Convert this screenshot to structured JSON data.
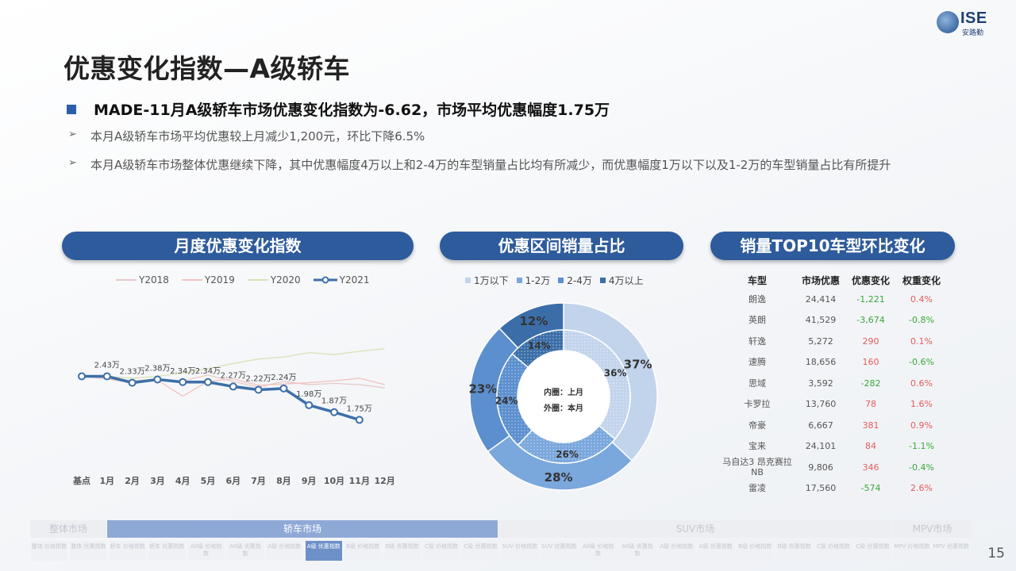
{
  "logo": {
    "text": "ISE",
    "sub": "安路勤"
  },
  "title": "优惠变化指数—A级轿车",
  "headline": "MADE-11月A级轿车市场优惠变化指数为-6.62，市场平均优惠幅度1.75万",
  "bullets": [
    "本月A级轿车市场平均优惠较上月减少1,200元，环比下降6.5%",
    "本月A级轿车市场整体优惠继续下降，其中优惠幅度4万以上和2-4万的车型销量占比均有所减少，而优惠幅度1万以下以及1-2万的车型销量占比有所提升"
  ],
  "sections": [
    "月度优惠变化指数",
    "优惠区间销量占比",
    "销量TOP10车型环比变化"
  ],
  "colors": {
    "accent": "#2e5b9b",
    "y2018": "#e6c9c9",
    "y2019": "#f0c2c2",
    "y2020": "#d7e3b5",
    "y2021": "#3d6fa8"
  },
  "chart_data": [
    {
      "type": "line",
      "categories": [
        "基点",
        "1月",
        "2月",
        "3月",
        "4月",
        "5月",
        "6月",
        "7月",
        "8月",
        "9月",
        "10月",
        "11月",
        "12月"
      ],
      "ylim": [
        1.0,
        3.6
      ],
      "series": [
        {
          "name": "Y2018",
          "values": [
            2.43,
            2.41,
            2.36,
            2.38,
            2.36,
            2.45,
            2.35,
            2.26,
            2.35,
            2.3,
            2.32,
            2.3,
            2.25
          ]
        },
        {
          "name": "Y2019",
          "values": [
            2.43,
            2.39,
            2.33,
            2.37,
            2.12,
            2.35,
            2.39,
            2.29,
            2.31,
            2.33,
            2.36,
            2.4,
            2.3
          ]
        },
        {
          "name": "Y2020",
          "values": [
            2.43,
            2.43,
            2.4,
            2.43,
            2.48,
            2.55,
            2.63,
            2.7,
            2.73,
            2.8,
            2.77,
            2.82,
            2.86
          ]
        },
        {
          "name": "Y2021",
          "values": [
            2.43,
            2.43,
            2.33,
            2.38,
            2.34,
            2.34,
            2.27,
            2.22,
            2.24,
            1.98,
            1.87,
            1.75,
            null
          ]
        }
      ],
      "data_labels": [
        "",
        "2.43万",
        "2.33万",
        "2.38万",
        "2.34万",
        "2.34万",
        "2.27万",
        "2.22万",
        "2.24万",
        "1.98万",
        "1.87万",
        "1.75万",
        ""
      ]
    },
    {
      "type": "pie",
      "categories": [
        "1万以下",
        "1-2万",
        "2-4万",
        "4万以上"
      ],
      "series": [
        {
          "name": "本月",
          "values": [
            37,
            28,
            23,
            12
          ]
        },
        {
          "name": "上月",
          "values": [
            36,
            26,
            24,
            14
          ]
        }
      ],
      "colors": [
        "#c2d4ec",
        "#7aa7dc",
        "#5b8fce",
        "#3b6ea8"
      ],
      "center_labels": [
        "内圈：上月",
        "外圈：本月"
      ]
    },
    {
      "type": "table",
      "headers": [
        "车型",
        "市场优惠",
        "优惠变化",
        "权重变化"
      ],
      "rows": [
        [
          "朗逸",
          "24,414",
          "-1,221",
          "0.4%"
        ],
        [
          "英朗",
          "41,529",
          "-3,674",
          "-0.8%"
        ],
        [
          "轩逸",
          "5,272",
          "290",
          "0.1%"
        ],
        [
          "速腾",
          "18,656",
          "160",
          "-0.6%"
        ],
        [
          "思域",
          "3,592",
          "-282",
          "0.6%"
        ],
        [
          "卡罗拉",
          "13,760",
          "78",
          "1.6%"
        ],
        [
          "帝豪",
          "6,667",
          "381",
          "0.9%"
        ],
        [
          "宝来",
          "24,101",
          "84",
          "-1.1%"
        ],
        [
          "马自达3 昂克赛拉NB",
          "9,806",
          "346",
          "-0.4%"
        ],
        [
          "雷凌",
          "17,560",
          "-574",
          "2.6%"
        ]
      ]
    }
  ],
  "nav": {
    "top": [
      {
        "label": "整体市场",
        "active": false
      },
      {
        "label": "轿车市场",
        "active": true
      },
      {
        "label": "SUV市场",
        "active": false
      },
      {
        "label": "MPV市场",
        "active": false
      }
    ],
    "cells": [
      "整体 价格指数",
      "整体 优惠指数",
      "轿车 价格指数",
      "轿车 优惠指数",
      "A0级 价格指数",
      "A0级 优惠指数",
      "A级 价格指数",
      "A级 优惠指数",
      "B级 价格指数",
      "B级 优惠指数",
      "C级 价格指数",
      "C级 优惠指数",
      "SUV 价格指数",
      "SUV 优惠指数",
      "A0级 价格指数",
      "A0级 优惠指数",
      "A级 价格指数",
      "A级 优惠指数",
      "B级 价格指数",
      "B级 优惠指数",
      "C级 价格指数",
      "C级 优惠指数",
      "MPV 价格指数",
      "MPV 优惠指数"
    ],
    "active_cell": 7
  },
  "page_number": "15"
}
